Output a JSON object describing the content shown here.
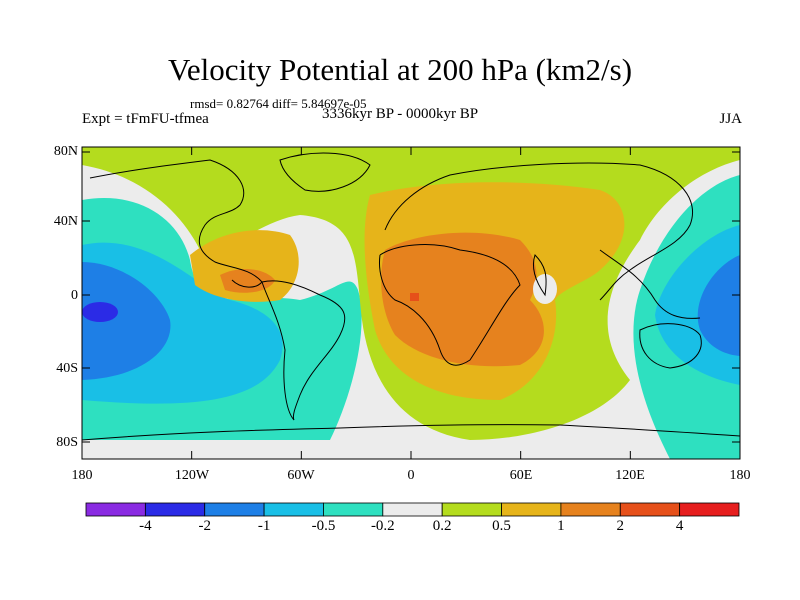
{
  "title": "Velocity Potential at 200 hPa (km2/s)",
  "stats": "rmsd= 0.82764 diff= 5.84697e-05",
  "expt": "Expt = tFmFU-tfmea",
  "period": "3336kyr BP - 0000kyr BP",
  "season": "JJA",
  "lat_labels": [
    "80N",
    "40N",
    "0",
    "40S",
    "80S"
  ],
  "lon_labels": [
    "180",
    "120W",
    "60W",
    "0",
    "60E",
    "120E",
    "180"
  ],
  "colorbar": {
    "colors": [
      "#8a2be2",
      "#2b2be6",
      "#1e7fe6",
      "#19bfe6",
      "#2ee0c0",
      "#ececec",
      "#b4dc1e",
      "#e6b41a",
      "#e6821e",
      "#e6501a",
      "#e61e1e"
    ],
    "labels": [
      "-4",
      "-2",
      "-1",
      "-0.5",
      "-0.2",
      "0.2",
      "0.5",
      "1",
      "2",
      "4"
    ]
  }
}
